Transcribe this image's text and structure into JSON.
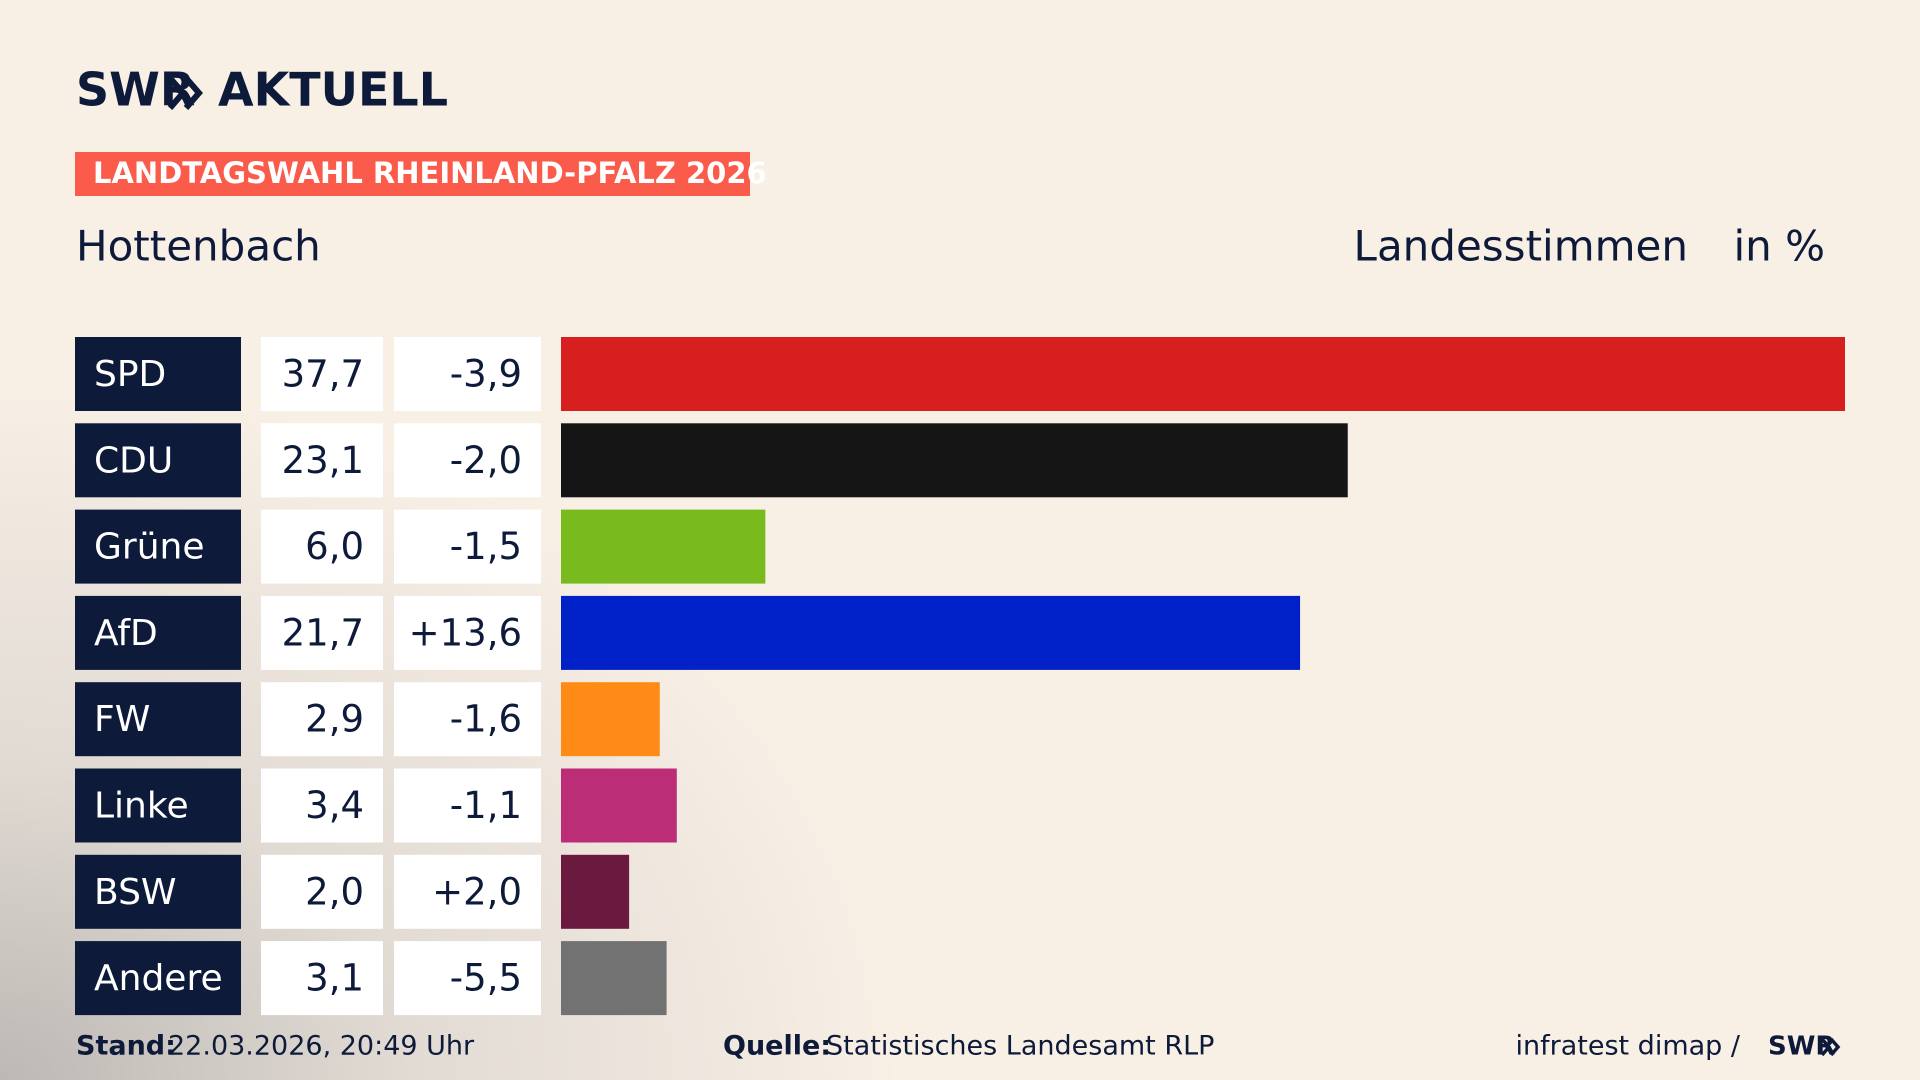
{
  "header": {
    "logo": "SWR",
    "brand": "AKTUELL"
  },
  "chart_data": {
    "type": "bar",
    "title": "LANDTAGSWAHL RHEINLAND-PFALZ 2026",
    "subtitle": "Hottenbach",
    "value_axis_label": "Landesstimmen",
    "unit_label": "in %",
    "categories": [
      "SPD",
      "CDU",
      "Grüne",
      "AfD",
      "FW",
      "Linke",
      "BSW",
      "Andere"
    ],
    "values": [
      37.7,
      23.1,
      6.0,
      21.7,
      2.9,
      3.4,
      2.0,
      3.1
    ],
    "value_labels": [
      "37,7",
      "23,1",
      "6,0",
      "21,7",
      "2,9",
      "3,4",
      "2,0",
      "3,1"
    ],
    "changes": [
      -3.9,
      -2.0,
      -1.5,
      13.6,
      -1.6,
      -1.1,
      2.0,
      -5.5
    ],
    "change_labels": [
      "-3,9",
      "-2,0",
      "-1,5",
      "+13,6",
      "-1,6",
      "-1,1",
      "+2,0",
      "-5,5"
    ],
    "colors": [
      "#d81f20",
      "#151515",
      "#79bb1e",
      "#0021c8",
      "#ff8b17",
      "#bb2d77",
      "#6a1a3e",
      "#727272"
    ]
  },
  "footer": {
    "stand_label": "Stand:",
    "stand": "22.03.2026, 20:49 Uhr",
    "source_label": "Quelle:",
    "source": "Statistisches Landesamt RLP",
    "credit": "infratest dimap /",
    "credit_logo": "SWR"
  }
}
